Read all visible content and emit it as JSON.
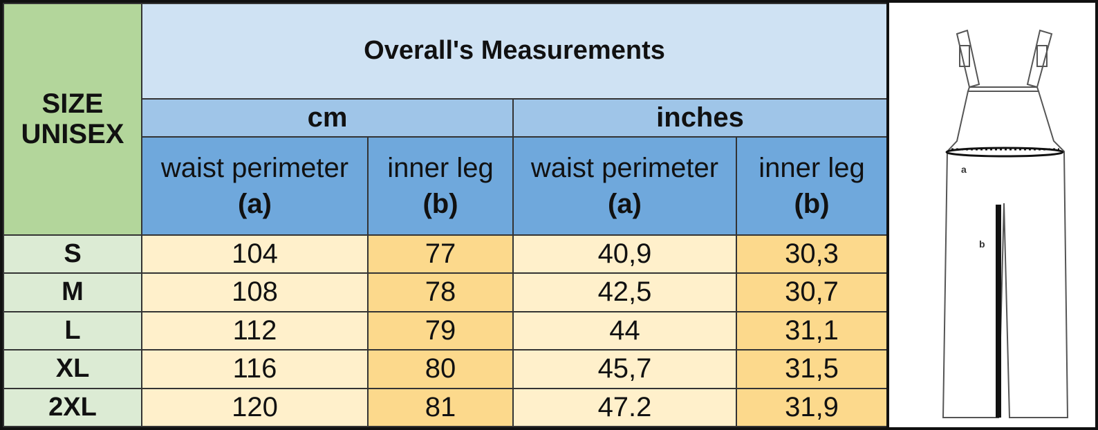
{
  "table": {
    "size_header": "SIZE UNISEX",
    "title": "Overall's Measurements",
    "units": [
      "cm",
      "inches"
    ],
    "columns": [
      {
        "label": "waist perimeter",
        "key": "(a)"
      },
      {
        "label": "inner leg",
        "key": "(b)"
      },
      {
        "label": "waist perimeter",
        "key": "(a)"
      },
      {
        "label": "inner leg",
        "key": "(b)"
      }
    ],
    "rows": [
      [
        "S",
        "104",
        "77",
        "40,9",
        "30,3"
      ],
      [
        "M",
        "108",
        "78",
        "42,5",
        "30,7"
      ],
      [
        "L",
        "112",
        "79",
        "44",
        "31,1"
      ],
      [
        "XL",
        "116",
        "80",
        "45,7",
        "31,5"
      ],
      [
        "2XL",
        "120",
        "81",
        "47.2",
        "31,9"
      ]
    ]
  },
  "figure": {
    "labels": [
      "a",
      "b"
    ]
  }
}
